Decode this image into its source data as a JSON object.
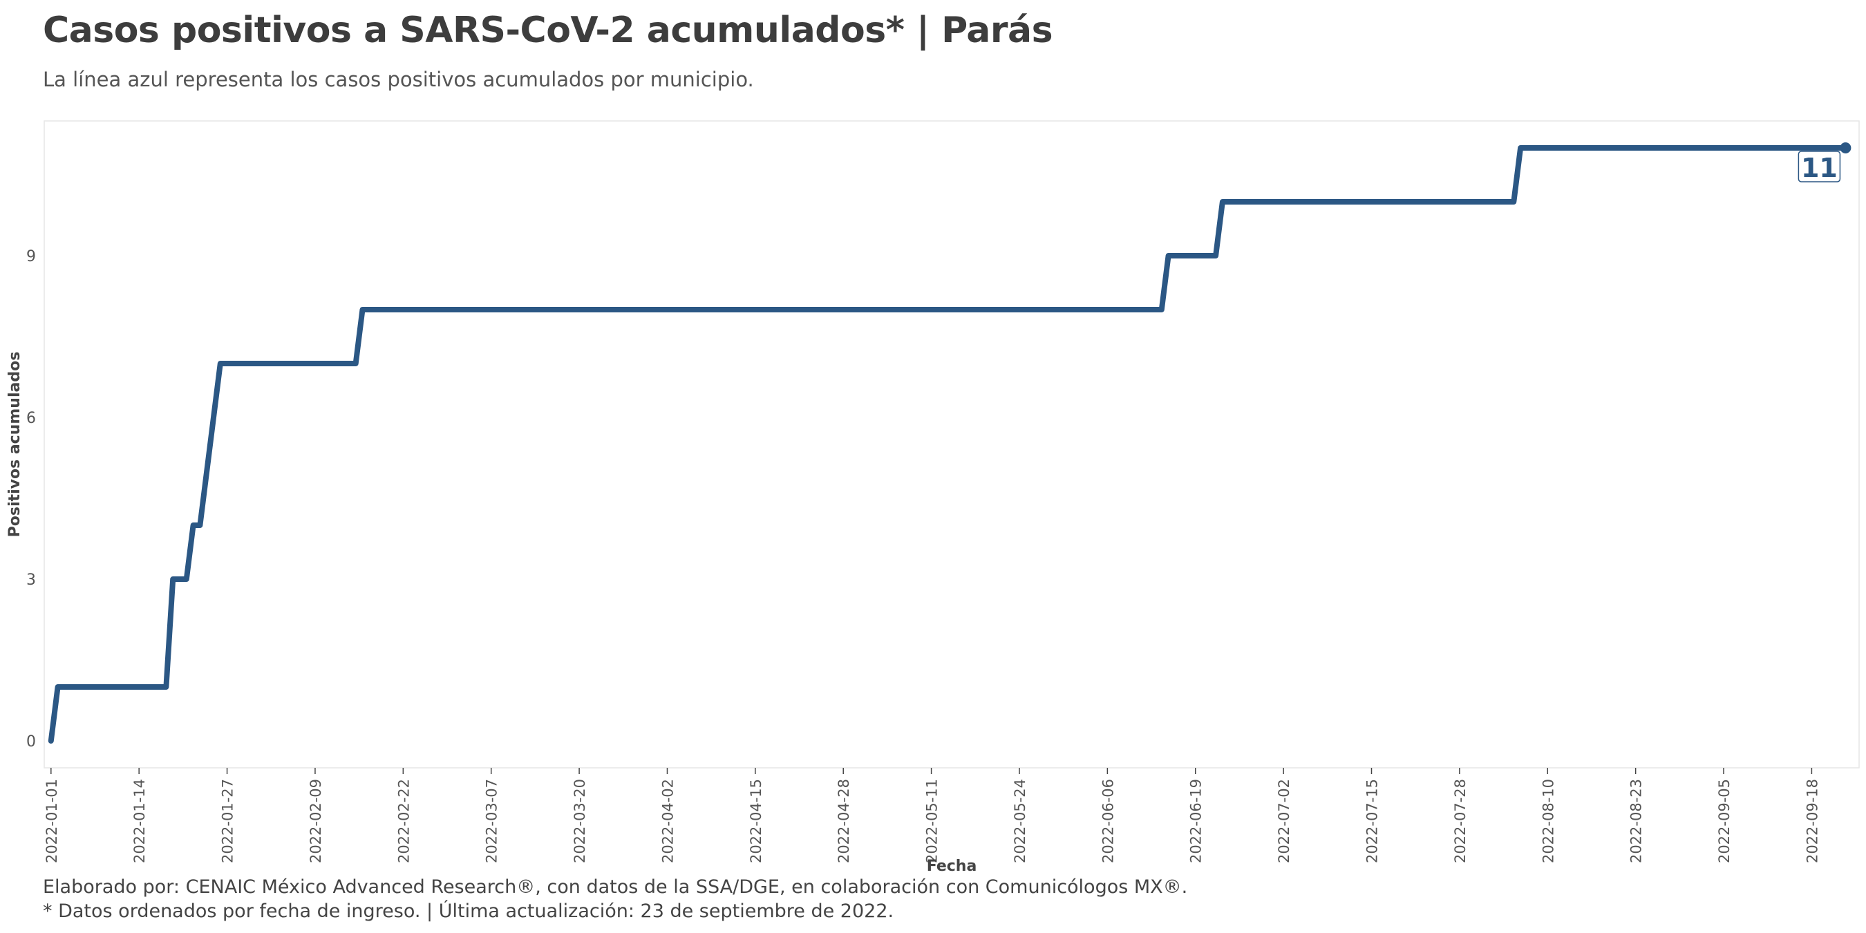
{
  "title": "Casos positivos a SARS-CoV-2 acumulados* | Parás",
  "subtitle": "La línea azul representa los casos positivos acumulados por municipio.",
  "caption": {
    "line1": "Elaborado por: CENAIC México Advanced Research®, con datos de la SSA/DGE, en colaboración con Comunicólogos MX®.",
    "line2": "* Datos ordenados por fecha de ingreso. | Última actualización: 23 de septiembre de 2022."
  },
  "chart_data": {
    "type": "line",
    "xlabel": "Fecha",
    "ylabel": "Positivos acumulados",
    "x_ticks": [
      "2022-01-01",
      "2022-01-14",
      "2022-01-27",
      "2022-02-09",
      "2022-02-22",
      "2022-03-07",
      "2022-03-20",
      "2022-04-02",
      "2022-04-15",
      "2022-04-28",
      "2022-05-11",
      "2022-05-24",
      "2022-06-06",
      "2022-06-19",
      "2022-07-02",
      "2022-07-15",
      "2022-07-28",
      "2022-08-10",
      "2022-08-23",
      "2022-09-05",
      "2022-09-18"
    ],
    "y_ticks": [
      0,
      3,
      6,
      9
    ],
    "ylim": [
      -0.5,
      11.5
    ],
    "xlim": [
      "2021-12-31",
      "2022-09-25"
    ],
    "line_color": "#2b5784",
    "grid": false,
    "series": [
      {
        "points": [
          {
            "x": "2022-01-01",
            "y": 0
          },
          {
            "x": "2022-01-02",
            "y": 1
          },
          {
            "x": "2022-01-18",
            "y": 1
          },
          {
            "x": "2022-01-19",
            "y": 3
          },
          {
            "x": "2022-01-21",
            "y": 3
          },
          {
            "x": "2022-01-22",
            "y": 4
          },
          {
            "x": "2022-01-23",
            "y": 4
          },
          {
            "x": "2022-01-26",
            "y": 7
          },
          {
            "x": "2022-02-15",
            "y": 7
          },
          {
            "x": "2022-02-16",
            "y": 8
          },
          {
            "x": "2022-06-14",
            "y": 8
          },
          {
            "x": "2022-06-15",
            "y": 9
          },
          {
            "x": "2022-06-22",
            "y": 9
          },
          {
            "x": "2022-06-23",
            "y": 10
          },
          {
            "x": "2022-08-05",
            "y": 10
          },
          {
            "x": "2022-08-06",
            "y": 11
          },
          {
            "x": "2022-09-23",
            "y": 11
          }
        ]
      }
    ],
    "last_value_label": "11"
  }
}
